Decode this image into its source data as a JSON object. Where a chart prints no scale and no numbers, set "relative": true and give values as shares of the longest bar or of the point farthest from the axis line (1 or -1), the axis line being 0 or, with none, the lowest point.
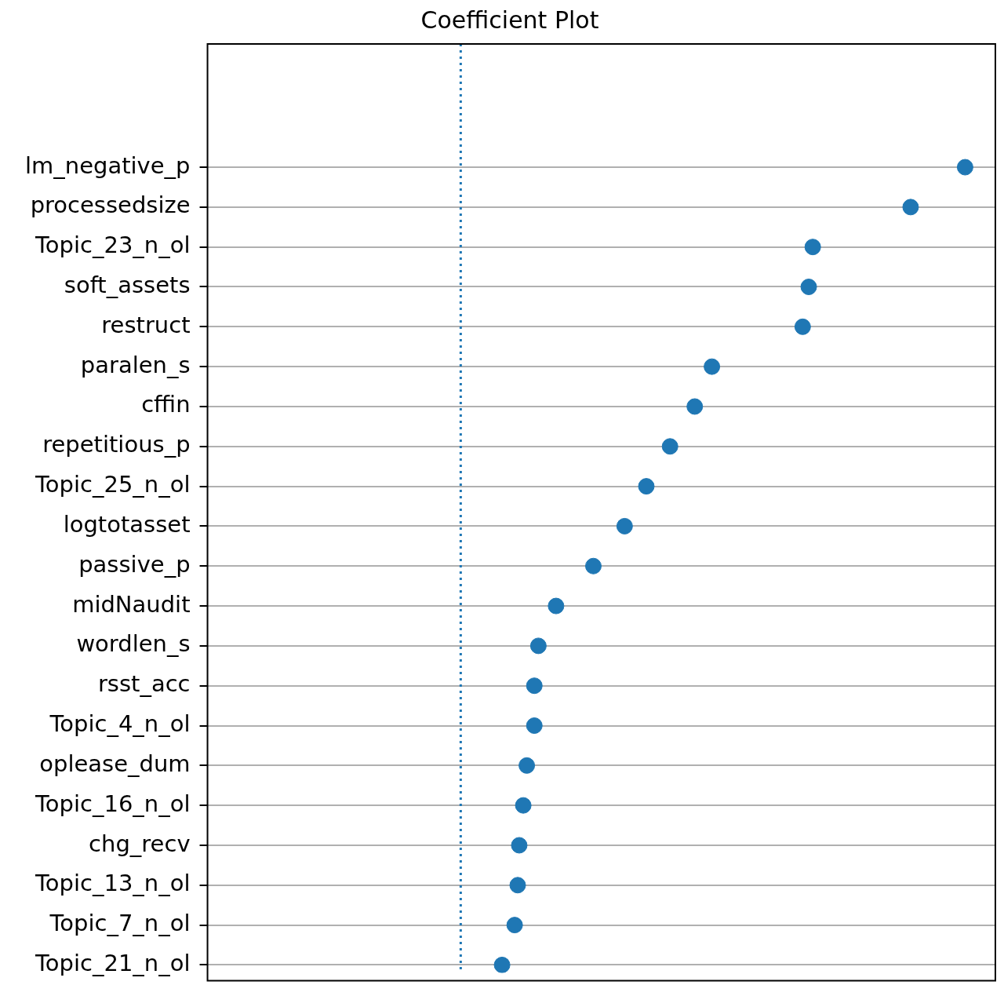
{
  "chart_data": {
    "type": "scatter",
    "title": "Coefficient Plot",
    "orientation": "horizontal",
    "relative": true,
    "categories": [
      "lm_negative_p",
      "processedsize",
      "Topic_23_n_ol",
      "soft_assets",
      "restruct",
      "paralen_s",
      "cffin",
      "repetitious_p",
      "Topic_25_n_ol",
      "logtotasset",
      "passive_p",
      "midNaudit",
      "wordlen_s",
      "rsst_acc",
      "Topic_4_n_ol",
      "oplease_dum",
      "Topic_16_n_ol",
      "chg_recv",
      "Topic_13_n_ol",
      "Topic_7_n_ol",
      "Topic_21_n_ol"
    ],
    "series": [
      {
        "color": "#1f77b4",
        "values": [
          1,
          0.892,
          0.698,
          0.69,
          0.678,
          0.498,
          0.464,
          0.415,
          0.368,
          0.325,
          0.263,
          0.189,
          0.154,
          0.146,
          0.146,
          0.131,
          0.124,
          0.116,
          0.113,
          0.107,
          0.082
        ]
      }
    ],
    "ref_lines": [
      {
        "axis": "x",
        "value": 0,
        "color": "#1f77b4",
        "line_style": "dotted"
      }
    ],
    "grid": "y",
    "marker": "circle",
    "legend": false,
    "tick_labels": "y"
  }
}
